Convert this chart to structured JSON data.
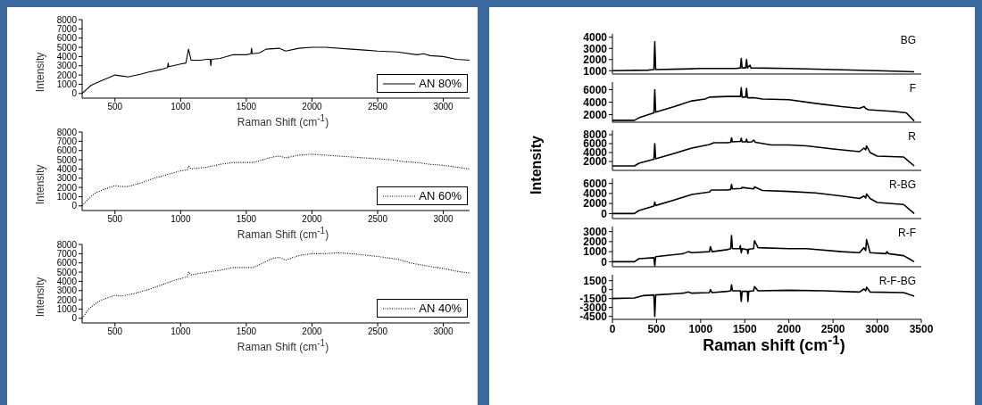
{
  "chart_data": [
    {
      "type": "line",
      "ylabel": "Intensity",
      "xlabel": "Raman Shift (cm$^{-1}$)",
      "xlim": [
        250,
        3200
      ],
      "xticks": [
        500,
        1000,
        1500,
        2000,
        2500,
        3000
      ],
      "ylim": [
        -500,
        8000
      ],
      "yticks": [
        0,
        1000,
        2000,
        3000,
        4000,
        5000,
        6000,
        7000,
        8000
      ],
      "legend": "bottom right",
      "series": [
        {
          "name": "AN 80%",
          "color": "#000000",
          "line_style": "solid",
          "x": [
            250,
            280,
            320,
            400,
            450,
            500,
            550,
            600,
            700,
            750,
            850,
            900,
            905,
            910,
            1000,
            1040,
            1060,
            1080,
            1150,
            1200,
            1225,
            1230,
            1235,
            1300,
            1400,
            1500,
            1535,
            1540,
            1545,
            1600,
            1650,
            1750,
            1800,
            1900,
            2000,
            2100,
            2300,
            2400,
            2500,
            2650,
            2800,
            2850,
            2900,
            3000,
            3100,
            3200
          ],
          "values": [
            0,
            400,
            900,
            1400,
            1700,
            2000,
            1900,
            1800,
            2100,
            2300,
            2600,
            2800,
            3300,
            2900,
            3200,
            3300,
            4800,
            3600,
            3600,
            3700,
            3700,
            3000,
            3700,
            3800,
            4200,
            4200,
            4300,
            4900,
            4300,
            4400,
            4800,
            4900,
            4600,
            4900,
            5000,
            5000,
            4800,
            4700,
            4600,
            4500,
            4200,
            4300,
            4100,
            4000,
            3700,
            3600
          ]
        }
      ]
    },
    {
      "type": "line",
      "ylabel": "Intensity",
      "xlabel": "Raman Shift (cm$^{-1}$)",
      "xlim": [
        250,
        3200
      ],
      "xticks": [
        500,
        1000,
        1500,
        2000,
        2500,
        3000
      ],
      "ylim": [
        -500,
        8000
      ],
      "yticks": [
        0,
        1000,
        2000,
        3000,
        4000,
        5000,
        6000,
        7000,
        8000
      ],
      "legend": "bottom right",
      "series": [
        {
          "name": "AN 60%",
          "color": "#000000",
          "line_style": "dotted",
          "x": [
            250,
            300,
            350,
            400,
            500,
            550,
            600,
            700,
            800,
            900,
            1000,
            1050,
            1060,
            1080,
            1200,
            1300,
            1400,
            1550,
            1600,
            1700,
            1750,
            1800,
            1900,
            2000,
            2200,
            2400,
            2600,
            2700,
            2800,
            2900,
            3000,
            3100,
            3200
          ],
          "values": [
            0,
            800,
            1400,
            1700,
            2200,
            2100,
            2100,
            2500,
            3000,
            3400,
            3800,
            3900,
            4300,
            4000,
            4200,
            4500,
            4700,
            4700,
            4900,
            5300,
            5400,
            5200,
            5500,
            5600,
            5400,
            5200,
            5000,
            4800,
            4700,
            4500,
            4400,
            4200,
            4000
          ]
        }
      ]
    },
    {
      "type": "line",
      "ylabel": "Intensity",
      "xlabel": "Raman Shift (cm$^{-1}$)",
      "xlim": [
        250,
        3200
      ],
      "xticks": [
        500,
        1000,
        1500,
        2000,
        2500,
        3000
      ],
      "ylim": [
        -500,
        8000
      ],
      "yticks": [
        0,
        1000,
        2000,
        3000,
        4000,
        5000,
        6000,
        7000,
        8000
      ],
      "legend": "bottom right",
      "series": [
        {
          "name": "AN 40%",
          "color": "#000000",
          "line_style": "dotted",
          "x": [
            250,
            300,
            350,
            400,
            500,
            550,
            650,
            750,
            850,
            950,
            1050,
            1060,
            1080,
            1200,
            1300,
            1400,
            1550,
            1600,
            1700,
            1750,
            1800,
            1900,
            2000,
            2100,
            2200,
            2300,
            2500,
            2650,
            2750,
            2900,
            3000,
            3100,
            3200
          ],
          "values": [
            0,
            1000,
            1600,
            2000,
            2500,
            2400,
            2700,
            3100,
            3600,
            4100,
            4500,
            5000,
            4700,
            5000,
            5200,
            5500,
            5500,
            5800,
            6500,
            6600,
            6300,
            6800,
            7000,
            7000,
            7100,
            7000,
            6700,
            6400,
            6000,
            5600,
            5400,
            5100,
            4900
          ]
        }
      ]
    },
    {
      "type": "line",
      "xlim": [
        0,
        3500
      ],
      "xticks": [
        0,
        500,
        1000,
        1500,
        2000,
        2500,
        3000,
        3500
      ],
      "ylim": [
        700,
        4300
      ],
      "yticks": [
        1000,
        2000,
        3000,
        4000
      ],
      "tick_labels": "y",
      "series": [
        {
          "name": "BG",
          "color": "#000000",
          "x": [
            0,
            400,
            470,
            480,
            490,
            800,
            1000,
            1400,
            1450,
            1460,
            1470,
            1510,
            1520,
            1530,
            1560,
            1570,
            2000,
            2500,
            3000,
            3420
          ],
          "values": [
            1000,
            1050,
            1100,
            3600,
            1100,
            1150,
            1200,
            1200,
            1250,
            2100,
            1250,
            1250,
            2000,
            1250,
            1500,
            1250,
            1200,
            1100,
            1000,
            900
          ]
        }
      ]
    },
    {
      "type": "line",
      "xlim": [
        0,
        3500
      ],
      "xticks": [
        0,
        500,
        1000,
        1500,
        2000,
        2500,
        3000,
        3500
      ],
      "ylim": [
        800,
        7200
      ],
      "yticks": [
        2000,
        4000,
        6000
      ],
      "tick_labels": "y",
      "series": [
        {
          "name": "F",
          "color": "#000000",
          "x": [
            0,
            250,
            300,
            470,
            480,
            490,
            700,
            900,
            1050,
            1100,
            1300,
            1450,
            1460,
            1470,
            1510,
            1520,
            1530,
            1600,
            1700,
            2000,
            2300,
            2600,
            2800,
            2850,
            2870,
            2900,
            3200,
            3330,
            3420
          ],
          "values": [
            1100,
            1100,
            1500,
            2300,
            6000,
            2400,
            3300,
            4200,
            4500,
            4800,
            4900,
            4900,
            6300,
            4800,
            4800,
            6200,
            4700,
            4700,
            4500,
            4400,
            3800,
            3300,
            3000,
            3300,
            3000,
            2800,
            2500,
            2300,
            1000
          ]
        }
      ]
    },
    {
      "type": "line",
      "xlim": [
        0,
        3500
      ],
      "xticks": [
        0,
        500,
        1000,
        1500,
        2000,
        2500,
        3000,
        3500
      ],
      "ylim": [
        0,
        9000
      ],
      "yticks": [
        2000,
        4000,
        6000,
        8000
      ],
      "tick_labels": "y",
      "series": [
        {
          "name": "R",
          "color": "#000000",
          "x": [
            0,
            250,
            300,
            470,
            480,
            490,
            700,
            900,
            1100,
            1150,
            1300,
            1340,
            1350,
            1360,
            1450,
            1460,
            1470,
            1510,
            1520,
            1530,
            1580,
            1600,
            1620,
            1800,
            2000,
            2200,
            2500,
            2800,
            2850,
            2870,
            2880,
            2920,
            3000,
            3300,
            3420
          ],
          "values": [
            1000,
            1000,
            1600,
            2500,
            6000,
            2600,
            3800,
            5000,
            5800,
            6200,
            6200,
            6300,
            7300,
            6400,
            6500,
            7200,
            6400,
            6400,
            7000,
            6300,
            6400,
            6800,
            6300,
            5700,
            5700,
            5500,
            4800,
            4200,
            5000,
            4600,
            5500,
            4000,
            3200,
            3000,
            1000
          ]
        }
      ]
    },
    {
      "type": "line",
      "ylabel": "Intensity",
      "xlim": [
        0,
        3500
      ],
      "xticks": [
        0,
        500,
        1000,
        1500,
        2000,
        2500,
        3000,
        3500
      ],
      "ylim": [
        -1000,
        7000
      ],
      "yticks": [
        0,
        2000,
        4000,
        6000
      ],
      "tick_labels": "y",
      "series": [
        {
          "name": "R-BG",
          "color": "#000000",
          "x": [
            0,
            250,
            300,
            470,
            480,
            490,
            700,
            900,
            1100,
            1120,
            1300,
            1340,
            1350,
            1360,
            1460,
            1470,
            1600,
            1610,
            1700,
            2000,
            2300,
            2600,
            2800,
            2850,
            2870,
            2880,
            2920,
            3000,
            3300,
            3420
          ],
          "values": [
            0,
            0,
            600,
            1500,
            2300,
            1600,
            2700,
            3800,
            4300,
            4700,
            4700,
            4800,
            5800,
            4900,
            5000,
            5200,
            4900,
            5300,
            4600,
            4400,
            4100,
            3500,
            3000,
            3500,
            3100,
            3900,
            3000,
            2200,
            1800,
            0
          ]
        }
      ]
    },
    {
      "type": "line",
      "xlim": [
        0,
        3500
      ],
      "xticks": [
        0,
        500,
        1000,
        1500,
        2000,
        2500,
        3000,
        3500
      ],
      "ylim": [
        -500,
        3500
      ],
      "yticks": [
        0,
        1000,
        2000,
        3000
      ],
      "tick_labels": "y",
      "series": [
        {
          "name": "R-F",
          "color": "#000000",
          "x": [
            0,
            250,
            300,
            470,
            480,
            490,
            800,
            860,
            900,
            1100,
            1110,
            1130,
            1300,
            1340,
            1350,
            1360,
            1440,
            1450,
            1460,
            1470,
            1530,
            1535,
            1545,
            1600,
            1610,
            1650,
            2000,
            2200,
            2600,
            2800,
            2850,
            2870,
            2880,
            2920,
            3100,
            3110,
            3130,
            3300,
            3420
          ],
          "values": [
            0,
            0,
            300,
            400,
            -400,
            500,
            800,
            1000,
            900,
            1000,
            1500,
            1000,
            1200,
            1300,
            2600,
            1300,
            1300,
            1600,
            900,
            1300,
            1200,
            800,
            1250,
            1300,
            2100,
            1400,
            1300,
            1300,
            1000,
            900,
            1400,
            1100,
            2200,
            900,
            800,
            1000,
            800,
            600,
            0
          ]
        }
      ]
    },
    {
      "type": "line",
      "xlabel": "Raman shift (cm$^{-1}$)",
      "xlim": [
        0,
        3500
      ],
      "xticks": [
        0,
        500,
        1000,
        1500,
        2000,
        2500,
        3000,
        3500
      ],
      "ylim": [
        -5000,
        2500
      ],
      "yticks": [
        1500,
        0,
        -1500,
        -3000,
        -4500
      ],
      "series": [
        {
          "name": "R-F-BG",
          "color": "#000000",
          "x": [
            0,
            250,
            350,
            470,
            480,
            490,
            800,
            860,
            900,
            1100,
            1110,
            1130,
            1300,
            1340,
            1350,
            1360,
            1450,
            1460,
            1470,
            1530,
            1535,
            1545,
            1600,
            1610,
            1650,
            2000,
            2400,
            2800,
            2850,
            2870,
            2880,
            2920,
            3300,
            3420
          ],
          "values": [
            -1500,
            -1400,
            -1000,
            -900,
            -4500,
            -900,
            -600,
            -400,
            -600,
            -500,
            0,
            -500,
            -300,
            -200,
            800,
            -200,
            -200,
            -2000,
            -300,
            -300,
            -2000,
            -300,
            -200,
            500,
            -200,
            -100,
            -200,
            -400,
            100,
            -200,
            400,
            -400,
            -500,
            -1100
          ]
        }
      ]
    }
  ]
}
